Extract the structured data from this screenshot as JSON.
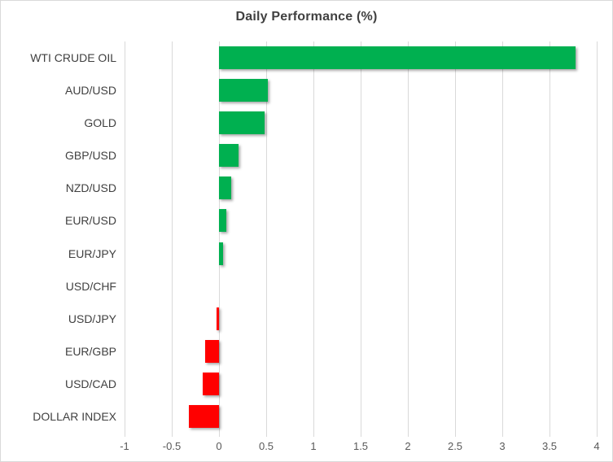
{
  "chart_data": {
    "type": "bar",
    "orientation": "horizontal",
    "title": "Daily Performance (%)",
    "categories": [
      "WTI CRUDE OIL",
      "AUD/USD",
      "GOLD",
      "GBP/USD",
      "NZD/USD",
      "EUR/USD",
      "EUR/JPY",
      "USD/CHF",
      "USD/JPY",
      "EUR/GBP",
      "USD/CAD",
      "DOLLAR INDEX"
    ],
    "values": [
      3.78,
      0.52,
      0.48,
      0.21,
      0.13,
      0.08,
      0.04,
      0,
      -0.03,
      -0.15,
      -0.17,
      -0.32
    ],
    "xlabel": "",
    "ylabel": "",
    "xlim": [
      -1,
      4
    ],
    "x_ticks": [
      -1,
      -0.5,
      0,
      0.5,
      1,
      1.5,
      2,
      2.5,
      3,
      3.5,
      4
    ],
    "x_tick_labels": [
      "-1",
      "-0.5",
      "0",
      "0.5",
      "1",
      "1.5",
      "2",
      "2.5",
      "3",
      "3.5",
      "4"
    ],
    "grid": "vertical-only",
    "legend": "none",
    "colors": {
      "positive_bar": "#00B050",
      "negative_bar": "#FF0000",
      "gridline": "#D9D9D9",
      "title_text": "#404040",
      "category_text": "#404040",
      "tick_text": "#595959",
      "frame_border": "#D9D9D9",
      "background": "#FFFFFF"
    }
  }
}
